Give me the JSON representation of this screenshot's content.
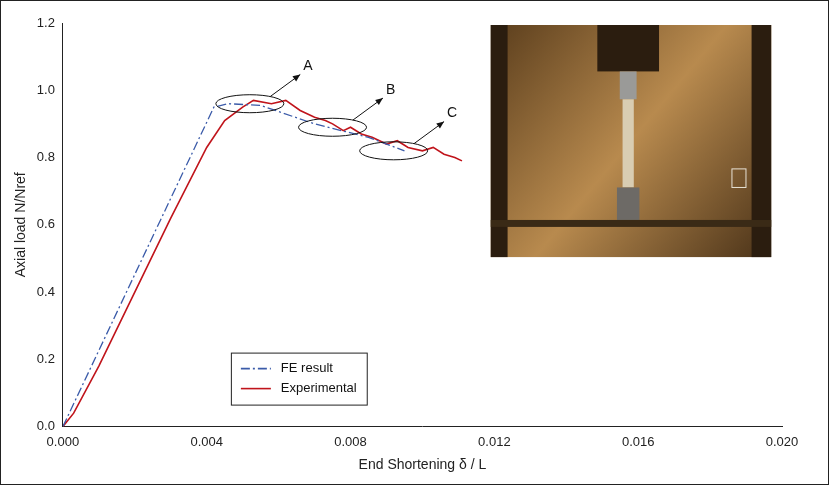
{
  "chart_data": {
    "type": "line",
    "x_label": "End Shortening δ / L",
    "y_label": "Axial load N/Nref",
    "xlim": [
      0,
      0.02
    ],
    "ylim": [
      0,
      1.2
    ],
    "xticks": [
      {
        "value": 0,
        "label": "0.000"
      },
      {
        "value": 0.004,
        "label": "0.004"
      },
      {
        "value": 0.008,
        "label": "0.008"
      },
      {
        "value": 0.012,
        "label": "0.012"
      },
      {
        "value": 0.016,
        "label": "0.016"
      },
      {
        "value": 0.02,
        "label": "0.020"
      }
    ],
    "yticks": [
      {
        "value": 0,
        "label": "0.0"
      },
      {
        "value": 0.2,
        "label": "0.2"
      },
      {
        "value": 0.4,
        "label": "0.4"
      },
      {
        "value": 0.6,
        "label": "0.6"
      },
      {
        "value": 0.8,
        "label": "0.8"
      },
      {
        "value": 1,
        "label": "1.0"
      },
      {
        "value": 1.2,
        "label": "1.2"
      }
    ],
    "grid": false,
    "legend": "lower left",
    "series": [
      {
        "name": "FE result",
        "color": "#3b5ba9",
        "line_style": "dashdot",
        "x": [
          0,
          0.0042,
          0.0046,
          0.0055,
          0.007,
          0.0085,
          0.0095
        ],
        "values": [
          0,
          0.95,
          0.96,
          0.955,
          0.9,
          0.86,
          0.82
        ]
      },
      {
        "name": "Experimental",
        "color": "#c0141b",
        "line_style": "solid",
        "x": [
          0,
          0.0003,
          0.001,
          0.002,
          0.003,
          0.004,
          0.0045,
          0.005,
          0.0053,
          0.0058,
          0.0062,
          0.0066,
          0.007,
          0.0073,
          0.0075,
          0.0078,
          0.008,
          0.0083,
          0.0086,
          0.009,
          0.0093,
          0.0096,
          0.01,
          0.0103,
          0.0106,
          0.0109,
          0.0111
        ],
        "values": [
          0,
          0.04,
          0.18,
          0.4,
          0.62,
          0.83,
          0.91,
          0.95,
          0.97,
          0.96,
          0.97,
          0.94,
          0.92,
          0.91,
          0.9,
          0.88,
          0.89,
          0.87,
          0.86,
          0.84,
          0.85,
          0.83,
          0.82,
          0.83,
          0.81,
          0.8,
          0.79
        ]
      }
    ],
    "annotations": [
      {
        "text": "A",
        "x": 0.0052,
        "y": 0.96
      },
      {
        "text": "B",
        "x": 0.0075,
        "y": 0.89
      },
      {
        "text": "C",
        "x": 0.0092,
        "y": 0.82
      }
    ]
  }
}
